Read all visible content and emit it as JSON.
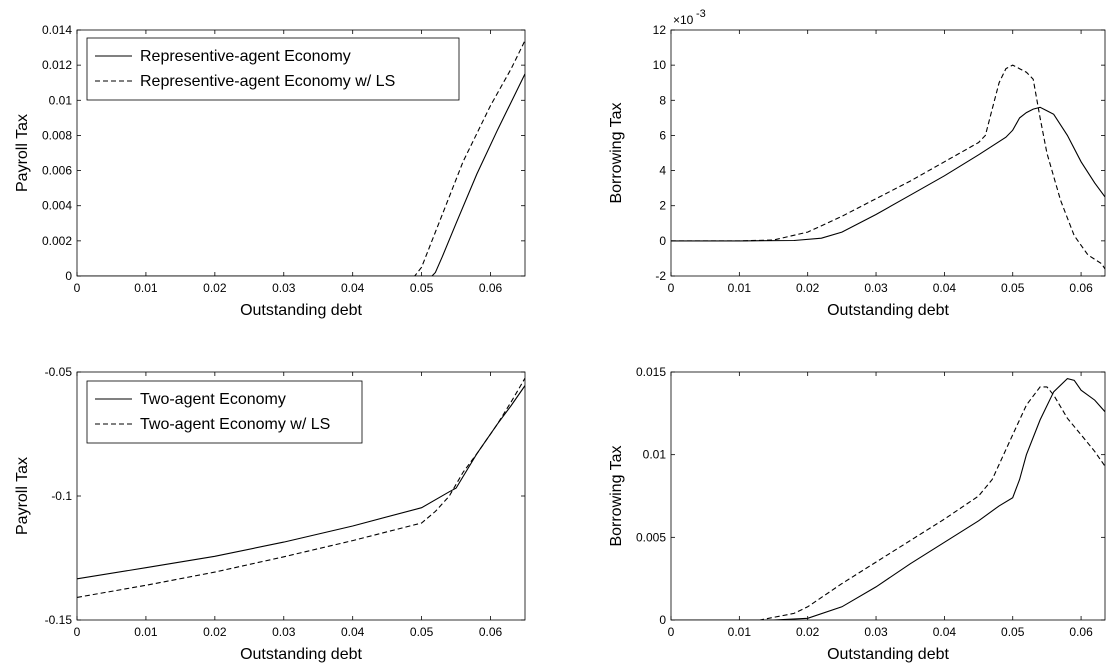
{
  "chart_data": [
    {
      "type": "line",
      "panel": "top-left",
      "xlabel": "Outstanding debt",
      "ylabel": "Payroll Tax",
      "xlim": [
        0,
        0.065
      ],
      "ylim": [
        0,
        0.014
      ],
      "x_ticks": [
        "0",
        "0.01",
        "0.02",
        "0.03",
        "0.04",
        "0.05",
        "0.06"
      ],
      "y_ticks": [
        "0",
        "0.002",
        "0.004",
        "0.006",
        "0.008",
        "0.01",
        "0.012",
        "0.014"
      ],
      "legend_placement": "top-left",
      "series": [
        {
          "name": "Representive-agent Economy",
          "style": "solid",
          "x": [
            0,
            0.01,
            0.02,
            0.03,
            0.04,
            0.05,
            0.0515,
            0.052,
            0.053,
            0.055,
            0.058,
            0.061,
            0.065
          ],
          "y": [
            0,
            0,
            0,
            0,
            0,
            0,
            0,
            0.0002,
            0.0011,
            0.003,
            0.0058,
            0.0083,
            0.0115
          ]
        },
        {
          "name": "Representive-agent Economy w/ LS",
          "style": "dashed",
          "x": [
            0,
            0.01,
            0.02,
            0.03,
            0.04,
            0.049,
            0.05,
            0.051,
            0.053,
            0.056,
            0.06,
            0.063,
            0.065
          ],
          "y": [
            0,
            0,
            0,
            0,
            0,
            0,
            0.0005,
            0.0015,
            0.0035,
            0.0065,
            0.0097,
            0.0118,
            0.0134
          ]
        }
      ]
    },
    {
      "type": "line",
      "panel": "top-right",
      "xlabel": "Outstanding debt",
      "ylabel": "Borrowing Tax",
      "xlim": [
        0,
        0.0635
      ],
      "ylim": [
        -2,
        12
      ],
      "y_scale_label": "×10",
      "y_scale_exponent": "-3",
      "x_ticks": [
        "0",
        "0.01",
        "0.02",
        "0.03",
        "0.04",
        "0.05",
        "0.06"
      ],
      "y_ticks": [
        "-2",
        "0",
        "2",
        "4",
        "6",
        "8",
        "10",
        "12"
      ],
      "series": [
        {
          "name": "",
          "style": "solid",
          "x": [
            0,
            0.01,
            0.018,
            0.022,
            0.025,
            0.03,
            0.035,
            0.04,
            0.045,
            0.049,
            0.05,
            0.051,
            0.052,
            0.053,
            0.054,
            0.055,
            0.056,
            0.058,
            0.06,
            0.062,
            0.0635
          ],
          "y": [
            0,
            0,
            0.02,
            0.15,
            0.5,
            1.5,
            2.6,
            3.7,
            4.9,
            5.9,
            6.3,
            7.0,
            7.3,
            7.5,
            7.6,
            7.4,
            7.2,
            6.0,
            4.5,
            3.3,
            2.5
          ]
        },
        {
          "name": "",
          "style": "dashed",
          "x": [
            0,
            0.01,
            0.015,
            0.02,
            0.025,
            0.03,
            0.035,
            0.04,
            0.045,
            0.046,
            0.047,
            0.048,
            0.049,
            0.05,
            0.051,
            0.052,
            0.053,
            0.054,
            0.055,
            0.057,
            0.059,
            0.061,
            0.063,
            0.0635
          ],
          "y": [
            0,
            0,
            0.05,
            0.5,
            1.4,
            2.4,
            3.4,
            4.5,
            5.6,
            6.0,
            7.5,
            9.0,
            9.8,
            10.0,
            9.8,
            9.6,
            9.2,
            7.0,
            5.0,
            2.3,
            0.3,
            -0.8,
            -1.3,
            -1.6
          ]
        }
      ]
    },
    {
      "type": "line",
      "panel": "bottom-left",
      "xlabel": "Outstanding debt",
      "ylabel": "Payroll Tax",
      "xlim": [
        0,
        0.065
      ],
      "ylim": [
        -0.15,
        -0.05
      ],
      "x_ticks": [
        "0",
        "0.01",
        "0.02",
        "0.03",
        "0.04",
        "0.05",
        "0.06"
      ],
      "y_ticks": [
        "-0.15",
        "-0.1",
        "-0.05"
      ],
      "legend_placement": "top-left",
      "series": [
        {
          "name": "Two-agent Economy",
          "style": "solid",
          "x": [
            0,
            0.01,
            0.02,
            0.03,
            0.04,
            0.05,
            0.054,
            0.055,
            0.058,
            0.061,
            0.063,
            0.065
          ],
          "y": [
            -0.1334,
            -0.1289,
            -0.1243,
            -0.1186,
            -0.1121,
            -0.1047,
            -0.0983,
            -0.0968,
            -0.083,
            -0.071,
            -0.0635,
            -0.0555
          ]
        },
        {
          "name": "Two-agent Economy w/ LS",
          "style": "dashed",
          "x": [
            0,
            0.01,
            0.02,
            0.03,
            0.04,
            0.05,
            0.052,
            0.054,
            0.056,
            0.058,
            0.061,
            0.063,
            0.065
          ],
          "y": [
            -0.1409,
            -0.136,
            -0.1307,
            -0.1245,
            -0.118,
            -0.1109,
            -0.1062,
            -0.1001,
            -0.0905,
            -0.083,
            -0.071,
            -0.062,
            -0.0525
          ]
        }
      ]
    },
    {
      "type": "line",
      "panel": "bottom-right",
      "xlabel": "Outstanding debt",
      "ylabel": "Borrowing Tax",
      "xlim": [
        0,
        0.0635
      ],
      "ylim": [
        0,
        0.015
      ],
      "x_ticks": [
        "0",
        "0.01",
        "0.02",
        "0.03",
        "0.04",
        "0.05",
        "0.06"
      ],
      "y_ticks": [
        "0",
        "0.005",
        "0.01",
        "0.015"
      ],
      "series": [
        {
          "name": "",
          "style": "solid",
          "x": [
            0,
            0.015,
            0.02,
            0.025,
            0.03,
            0.035,
            0.04,
            0.045,
            0.048,
            0.05,
            0.051,
            0.052,
            0.054,
            0.056,
            0.058,
            0.059,
            0.06,
            0.062,
            0.0635
          ],
          "y": [
            0,
            0,
            0.0001,
            0.0008,
            0.002,
            0.0034,
            0.0047,
            0.006,
            0.0069,
            0.0074,
            0.0085,
            0.01,
            0.0121,
            0.0138,
            0.0146,
            0.0145,
            0.0139,
            0.0133,
            0.0126
          ]
        },
        {
          "name": "",
          "style": "dashed",
          "x": [
            0,
            0.013,
            0.018,
            0.02,
            0.025,
            0.03,
            0.035,
            0.04,
            0.045,
            0.047,
            0.05,
            0.052,
            0.054,
            0.055,
            0.056,
            0.058,
            0.06,
            0.062,
            0.0635
          ],
          "y": [
            0,
            0,
            0.0004,
            0.0008,
            0.0022,
            0.0035,
            0.0048,
            0.0061,
            0.0075,
            0.0085,
            0.0112,
            0.013,
            0.0141,
            0.0141,
            0.0136,
            0.0122,
            0.0112,
            0.0102,
            0.0093
          ]
        }
      ]
    }
  ]
}
